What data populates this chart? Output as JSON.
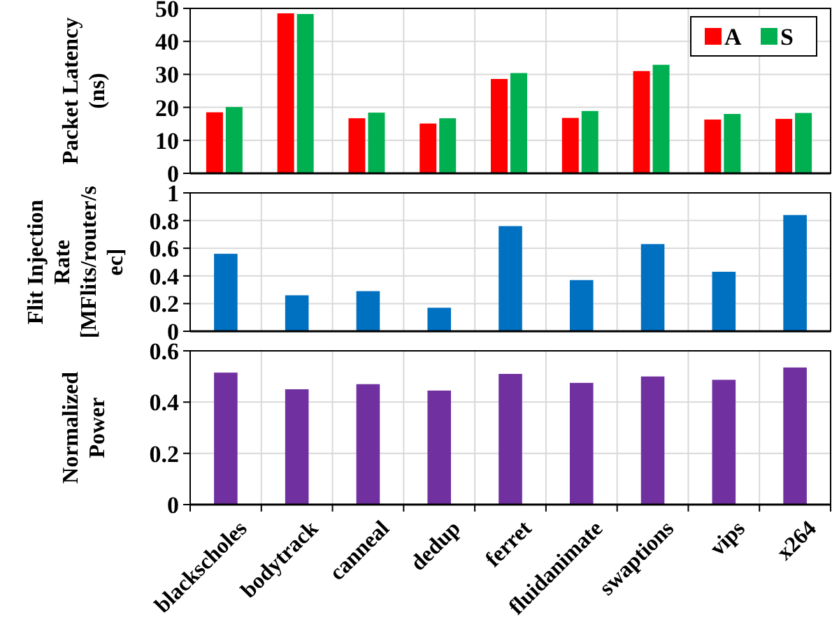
{
  "chart_data": [
    {
      "type": "bar",
      "ylabel": "Packet Latency (ns)",
      "categories": [
        null,
        null,
        null,
        null,
        null,
        null,
        null,
        null,
        null
      ],
      "ylim": [
        0,
        50
      ],
      "yticks": [
        0,
        10,
        20,
        30,
        40,
        50
      ],
      "grid": true,
      "legend": "top right",
      "tick_labels": "y",
      "series": [
        {
          "name": "A",
          "color": "#ff0000",
          "values": [
            18.5,
            48.5,
            16.7,
            15.1,
            28.6,
            16.8,
            31.0,
            16.3,
            16.5
          ]
        },
        {
          "name": "S",
          "color": "#00b050",
          "values": [
            20.1,
            48.3,
            18.4,
            16.7,
            30.4,
            18.9,
            32.9,
            18.0,
            18.3
          ]
        }
      ]
    },
    {
      "type": "bar",
      "ylabel": "Flit Injection Rate [MFlits/router/sec]",
      "categories": [
        null,
        null,
        null,
        null,
        null,
        null,
        null,
        null,
        null
      ],
      "ylim": [
        0,
        1
      ],
      "yticks": [
        0,
        0.2,
        0.4,
        0.6,
        0.8,
        1
      ],
      "grid": true,
      "tick_labels": "y",
      "series": [
        {
          "color": "#0070c0",
          "values": [
            0.56,
            0.26,
            0.29,
            0.17,
            0.76,
            0.37,
            0.63,
            0.43,
            0.84
          ]
        }
      ]
    },
    {
      "type": "bar",
      "ylabel": "Normalized Power",
      "categories": [
        "blackscholes",
        "bodytrack",
        "canneal",
        "dedup",
        "ferret",
        "fluidanimate",
        "swaptions",
        "vips",
        "x264"
      ],
      "ylim": [
        0,
        0.6
      ],
      "yticks": [
        0,
        0.2,
        0.4,
        0.6
      ],
      "grid": true,
      "series": [
        {
          "color": "#7030a0",
          "values": [
            0.515,
            0.45,
            0.47,
            0.445,
            0.51,
            0.475,
            0.5,
            0.487,
            0.535
          ]
        }
      ]
    }
  ]
}
